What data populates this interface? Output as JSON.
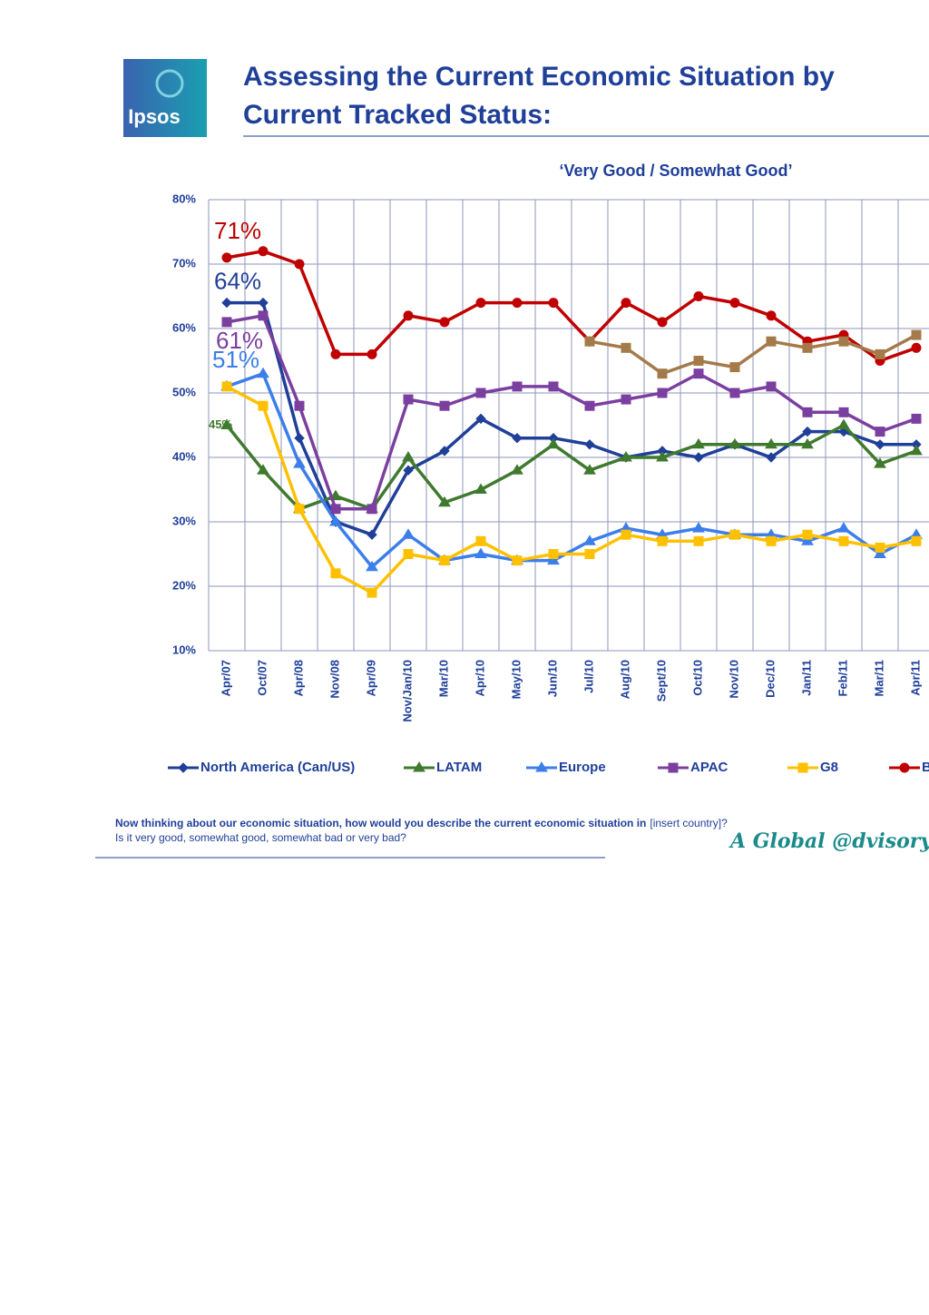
{
  "logo": {
    "text": "Ipsos"
  },
  "header": {
    "title_line1": "Assessing the Current Economic Situation by",
    "title_line2": "Current Tracked Status:"
  },
  "chart_data": {
    "type": "line",
    "subtitle": "‘Very Good / Somewhat Good’",
    "categories": [
      "Apr/07",
      "Oct/07",
      "Apr/08",
      "Nov/08",
      "Apr/09",
      "Nov/Jan/10",
      "Mar/10",
      "Apr/10",
      "May/10",
      "Jun/10",
      "Jul/10",
      "Aug/10",
      "Sept/10",
      "Oct/10",
      "Nov/10",
      "Dec/10",
      "Jan/11",
      "Feb/11",
      "Mar/11",
      "Apr/11"
    ],
    "ylim": [
      10,
      80
    ],
    "yticks": [
      {
        "value": 10,
        "label": "10%"
      },
      {
        "value": 20,
        "label": "20%"
      },
      {
        "value": 30,
        "label": "30%"
      },
      {
        "value": 40,
        "label": "40%"
      },
      {
        "value": 50,
        "label": "50%"
      },
      {
        "value": 60,
        "label": "60%"
      },
      {
        "value": 70,
        "label": "70%"
      },
      {
        "value": 80,
        "label": "80%"
      }
    ],
    "grid": true,
    "legend": "bottom",
    "series": [
      {
        "name": "North America (Can/US)",
        "color": "#1f3f99",
        "marker": "diamond",
        "values": [
          64,
          64,
          43,
          30,
          28,
          38,
          41,
          46,
          43,
          43,
          42,
          40,
          41,
          40,
          42,
          40,
          44,
          44,
          42,
          42
        ],
        "value_labels": [
          "64%",
          null,
          null,
          null,
          null,
          null,
          null,
          null,
          null,
          null,
          null,
          null,
          null,
          null,
          null,
          null,
          null,
          null,
          null,
          null
        ]
      },
      {
        "name": "LATAM",
        "color": "#3f7a2e",
        "marker": "triangle",
        "values": [
          45,
          38,
          32,
          34,
          32,
          40,
          33,
          35,
          38,
          42,
          38,
          40,
          40,
          42,
          42,
          42,
          42,
          45,
          39,
          41
        ],
        "value_labels": [
          "45%",
          null,
          null,
          null,
          null,
          null,
          null,
          null,
          null,
          null,
          null,
          null,
          null,
          null,
          null,
          null,
          null,
          null,
          null,
          null
        ]
      },
      {
        "name": "Europe",
        "color": "#3c7eea",
        "marker": "triangle",
        "values": [
          51,
          53,
          39,
          30,
          23,
          28,
          24,
          25,
          24,
          24,
          27,
          29,
          28,
          29,
          28,
          28,
          27,
          29,
          25,
          28
        ],
        "value_labels": [
          "51%",
          null,
          null,
          null,
          null,
          null,
          null,
          null,
          null,
          null,
          null,
          null,
          null,
          null,
          null,
          null,
          null,
          null,
          null,
          null
        ]
      },
      {
        "name": "APAC",
        "color": "#7b3fa0",
        "marker": "square",
        "values": [
          61,
          62,
          48,
          32,
          32,
          49,
          48,
          50,
          51,
          51,
          48,
          49,
          50,
          53,
          50,
          51,
          47,
          47,
          44,
          46
        ],
        "value_labels": [
          "61%",
          null,
          null,
          null,
          null,
          null,
          null,
          null,
          null,
          null,
          null,
          null,
          null,
          null,
          null,
          null,
          null,
          null,
          null,
          null
        ]
      },
      {
        "name": "G8",
        "color": "#ffc000",
        "marker": "square",
        "values": [
          51,
          48,
          32,
          22,
          19,
          25,
          24,
          27,
          24,
          25,
          25,
          28,
          27,
          27,
          28,
          27,
          28,
          27,
          26,
          27
        ]
      },
      {
        "name": "BRIC",
        "color": "#c00000",
        "marker": "circle",
        "values": [
          71,
          72,
          70,
          56,
          56,
          62,
          61,
          64,
          64,
          64,
          58,
          64,
          61,
          65,
          64,
          62,
          58,
          59,
          55,
          57
        ],
        "value_labels": [
          "71%",
          null,
          null,
          null,
          null,
          null,
          null,
          null,
          null,
          null,
          null,
          null,
          null,
          null,
          null,
          null,
          null,
          null,
          null,
          null
        ]
      },
      {
        "color": "#a57a4a",
        "marker": "square",
        "values": [
          null,
          null,
          null,
          null,
          null,
          null,
          null,
          null,
          null,
          null,
          58,
          57,
          53,
          55,
          54,
          58,
          57,
          58,
          56,
          59
        ]
      }
    ]
  },
  "footnote": {
    "line1_bold": "Now thinking about our economic situation, how would you describe the current economic situation in",
    "line1_normal": "[insert country]?",
    "line2": "Is it very good, somewhat good, somewhat bad or very bad?"
  },
  "brand": "A Global @dvisory –"
}
